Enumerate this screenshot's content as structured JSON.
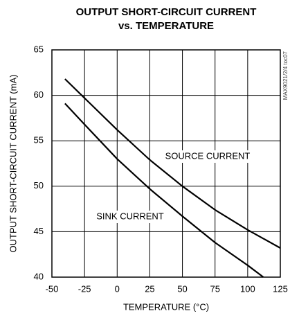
{
  "chart_data": {
    "type": "line",
    "title": [
      "OUTPUT SHORT-CIRCUIT CURRENT",
      "vs. TEMPERATURE"
    ],
    "xlabel": "TEMPERATURE (°C)",
    "ylabel": "OUTPUT SHORT-CIRCUIT CURRENT (mA)",
    "side_label": "MAX9021/2/4 toc07",
    "xlim": [
      -50,
      125
    ],
    "xticks": [
      -50,
      -25,
      0,
      25,
      50,
      75,
      100,
      125
    ],
    "ylim": [
      40,
      65
    ],
    "yticks": [
      40,
      45,
      50,
      55,
      60,
      65
    ],
    "grid": true,
    "series": [
      {
        "name": "SOURCE CURRENT",
        "color": "#000000",
        "x": [
          -40,
          -25,
          0,
          25,
          50,
          75,
          100,
          125
        ],
        "values": [
          61.8,
          59.7,
          56.2,
          52.9,
          50.0,
          47.4,
          45.2,
          43.2
        ]
      },
      {
        "name": "SINK CURRENT",
        "color": "#000000",
        "x": [
          -40,
          -25,
          0,
          25,
          50,
          75,
          100,
          112
        ],
        "values": [
          59.1,
          56.8,
          53.0,
          49.7,
          46.7,
          43.8,
          41.3,
          40.0
        ]
      }
    ]
  }
}
